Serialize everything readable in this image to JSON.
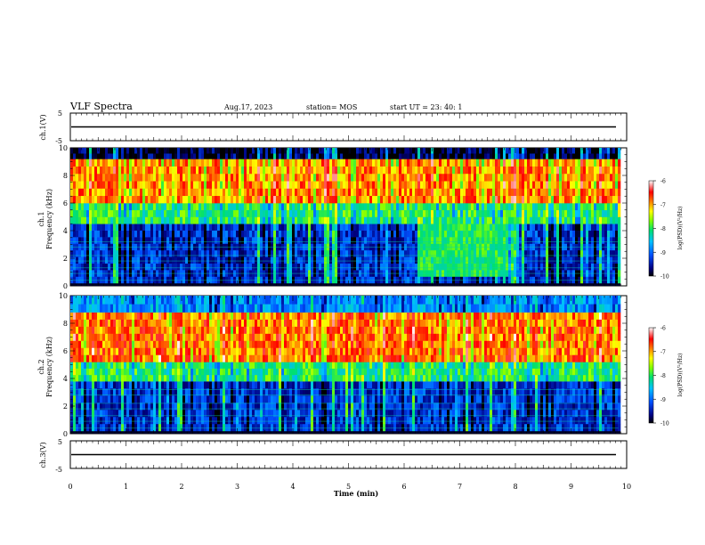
{
  "header": {
    "title": "VLF Spectra",
    "date": "Aug.17, 2023",
    "station": "station= MOS",
    "start_ut": "start  UT  =   23: 40: 1"
  },
  "chart_data": [
    {
      "type": "line",
      "name": "ch1-voltage",
      "ylabel": "ch.1(V)",
      "ylim": [
        -5,
        5
      ],
      "yticks": [
        "5",
        "-5"
      ],
      "x": [
        0,
        10
      ],
      "values": [
        0,
        0
      ],
      "xlim": [
        0,
        10
      ]
    },
    {
      "type": "heatmap",
      "name": "ch1-spectrogram",
      "ylabel": "ch.1\nFrequency (kHz)",
      "ylim": [
        0,
        10
      ],
      "yticks": [
        "0",
        "2",
        "4",
        "6",
        "8",
        "10"
      ],
      "xlim": [
        0,
        10
      ],
      "data_xrange": [
        0,
        9.85
      ],
      "colorbar": {
        "label": "log(PSD)(V²/Hz)",
        "ticks": [
          "-6",
          "-7",
          "-8",
          "-9",
          "-10"
        ],
        "range": [
          -10,
          -6
        ]
      },
      "bands": [
        {
          "f_min": 0.2,
          "f_max": 4.5,
          "level": -9.3
        },
        {
          "f_min": 4.5,
          "f_max": 6.0,
          "level": -8.0
        },
        {
          "f_min": 6.0,
          "f_max": 9.2,
          "level": -6.9
        },
        {
          "f_min": 9.2,
          "f_max": 10.0,
          "level": -9.8
        }
      ],
      "features": [
        {
          "t_start": 6.2,
          "t_end": 7.85,
          "f_min": 0.3,
          "f_max": 4.0,
          "level": -8.0
        }
      ]
    },
    {
      "type": "heatmap",
      "name": "ch2-spectrogram",
      "ylabel": "ch.2\nFrequency (kHz)",
      "ylim": [
        0,
        10
      ],
      "yticks": [
        "0",
        "2",
        "4",
        "6",
        "8",
        "10"
      ],
      "xlim": [
        0,
        10
      ],
      "data_xrange": [
        0,
        9.85
      ],
      "colorbar": {
        "label": "log(PSD)(V²/Hz)",
        "ticks": [
          "-6",
          "-7",
          "-8",
          "-9",
          "-10"
        ],
        "range": [
          -10,
          -6
        ]
      },
      "bands": [
        {
          "f_min": 0.2,
          "f_max": 3.8,
          "level": -9.3
        },
        {
          "f_min": 3.8,
          "f_max": 5.2,
          "level": -8.0
        },
        {
          "f_min": 5.2,
          "f_max": 8.8,
          "level": -6.8
        },
        {
          "f_min": 8.8,
          "f_max": 10.0,
          "level": -8.8
        }
      ],
      "features": []
    },
    {
      "type": "line",
      "name": "ch3-voltage",
      "ylabel": "ch.3(V)",
      "ylim": [
        -5,
        5
      ],
      "yticks": [
        "5",
        "-5"
      ],
      "x": [
        0,
        10
      ],
      "values": [
        0,
        0
      ],
      "xlim": [
        0,
        10
      ],
      "xlabel": "Time  (min)",
      "xticks": [
        "0",
        "1",
        "2",
        "3",
        "4",
        "5",
        "6",
        "7",
        "8",
        "9",
        "10"
      ]
    }
  ]
}
